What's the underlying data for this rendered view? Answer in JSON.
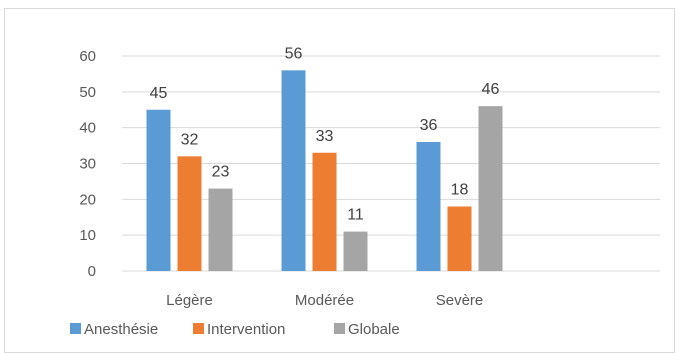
{
  "chart_data": {
    "type": "bar",
    "title": "",
    "xlabel": "",
    "ylabel": "",
    "categories": [
      "Légère",
      "Modérée",
      "Sevère"
    ],
    "series": [
      {
        "name": "Anesthésie",
        "values": [
          45,
          56,
          36
        ],
        "color": "#5b9bd5"
      },
      {
        "name": "Intervention",
        "values": [
          32,
          33,
          18
        ],
        "color": "#ed7d31"
      },
      {
        "name": "Globale",
        "values": [
          23,
          11,
          46
        ],
        "color": "#a5a5a5"
      }
    ],
    "ylim": [
      0,
      60
    ],
    "yticks": [
      0,
      10,
      20,
      30,
      40,
      50,
      60
    ],
    "grid": true,
    "data_labels": true,
    "legend_position": "bottom-left"
  }
}
